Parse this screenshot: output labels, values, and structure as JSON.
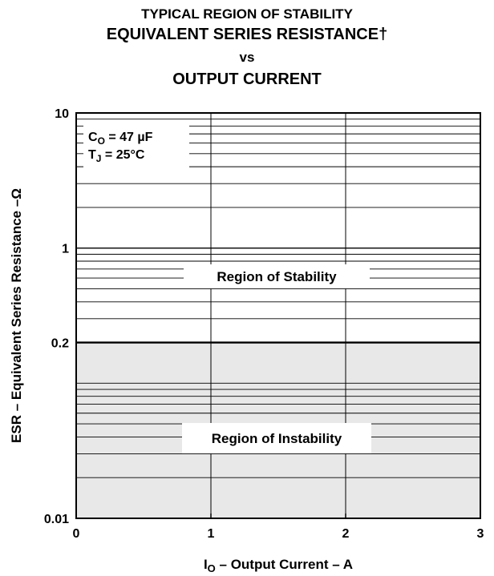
{
  "chart_data": {
    "type": "area",
    "title": [
      "TYPICAL REGION OF STABILITY",
      "EQUIVALENT SERIES RESISTANCE†",
      "vs",
      "OUTPUT CURRENT"
    ],
    "xlabel": {
      "main": "I",
      "sub": "O",
      "rest": " – Output Current – A"
    },
    "ylabel": "ESR – Equivalent Series Resistance –Ω",
    "x_ticks": [
      "0",
      "1",
      "2",
      "3"
    ],
    "x_tick_values": [
      0,
      1,
      2,
      3
    ],
    "xlim": [
      0,
      3
    ],
    "y_scale": "log",
    "y_ticks": [
      "10",
      "1",
      "0.2",
      "0.01"
    ],
    "y_tick_values": [
      10,
      1,
      0.2,
      0.01
    ],
    "ylim": [
      0.01,
      10
    ],
    "grid": true,
    "stability_boundary": {
      "x": [
        0,
        3
      ],
      "esr": [
        0.2,
        0.2
      ]
    },
    "regions": [
      {
        "label": "Region of Stability",
        "esr_range": [
          0.2,
          10
        ],
        "fill": "#ffffff"
      },
      {
        "label": "Region of Instability",
        "esr_range": [
          0.01,
          0.2
        ],
        "fill": "#e8e8e8"
      }
    ],
    "conditions": [
      {
        "main": "C",
        "sub": "O",
        "rest": " = 47 µF"
      },
      {
        "main": "T",
        "sub": "J",
        "rest": " = 25°C"
      }
    ]
  }
}
